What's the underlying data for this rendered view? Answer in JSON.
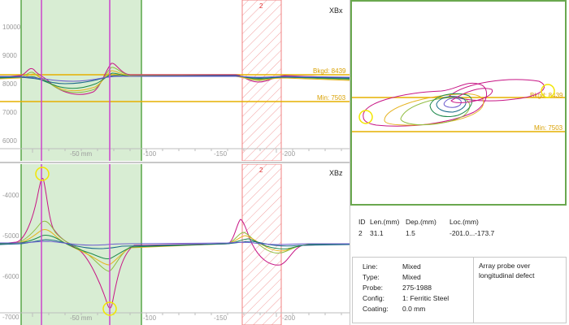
{
  "colors": {
    "threshold": "#e6b000",
    "cursor": "#cc44cc",
    "selection_fill": "#d8edd3",
    "selection_border": "#58a648",
    "defect": "#f08080",
    "traces": [
      "#c71585",
      "#8fbc3f",
      "#e6b422",
      "#1f8a4c",
      "#1a6b8a",
      "#6a5acd"
    ]
  },
  "xbx": {
    "channel_label": "XBx",
    "y_ticks": [
      "10000",
      "9000",
      "8000",
      "7000",
      "6000"
    ],
    "x_ticks": [
      "-50 mm",
      "-100",
      "-150",
      "-200"
    ],
    "bkgd_label": "Bkgd: 8439",
    "min_label": "Min: 7503",
    "defect_id": "2"
  },
  "xbz": {
    "channel_label": "XBz",
    "y_ticks": [
      "-4000",
      "-5000",
      "-6000",
      "-7000"
    ],
    "x_ticks": [
      "-50 mm",
      "-100",
      "-150",
      "-200"
    ],
    "defect_id": "2"
  },
  "lissajous": {
    "bkgd_label": "Bkgd: 8439",
    "min_label": "Min: 7503"
  },
  "defect_table": {
    "headers": [
      "ID",
      "Len.(mm)",
      "Dep.(mm)",
      "Loc.(mm)"
    ],
    "rows": [
      {
        "id": "2",
        "len": "31.1",
        "dep": "1.5",
        "loc": "-201.0...-173.7"
      }
    ]
  },
  "info": {
    "line_label": "Line:",
    "line_value": "Mixed",
    "type_label": "Type:",
    "type_value": "Mixed",
    "probe_label": "Probe:",
    "probe_value": "275-1988",
    "config_label": "Config:",
    "config_value": "1: Ferritic Steel",
    "coating_label": "Coating:",
    "coating_value": "0.0 mm"
  },
  "note": "Array probe over longitudinal defect"
}
